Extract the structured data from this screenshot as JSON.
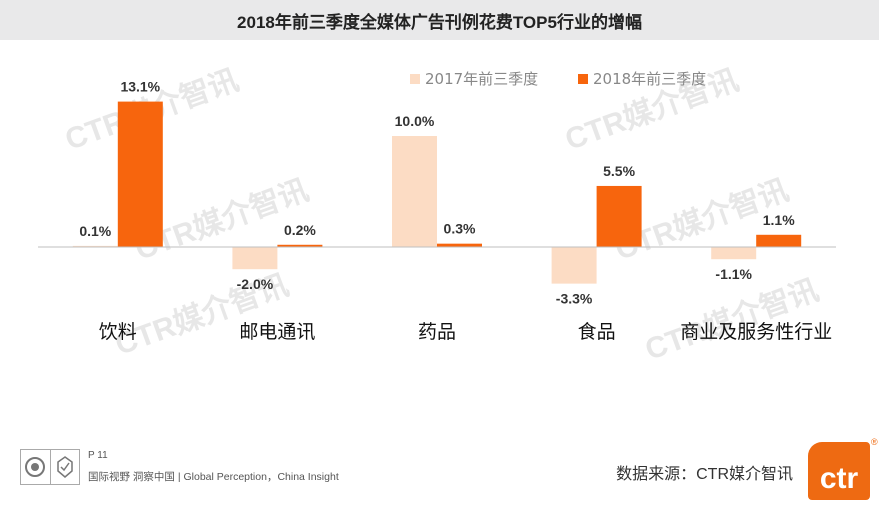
{
  "header": {
    "title": "2018年前三季度全媒体广告刊例花费TOP5行业的增幅"
  },
  "watermark": {
    "text": "CTR媒介智讯"
  },
  "chart_data": {
    "type": "bar",
    "title": "2018年前三季度全媒体广告刊例花费TOP5行业的增幅",
    "categories": [
      "饮料",
      "邮电通讯",
      "药品",
      "食品",
      "商业及服务性行业"
    ],
    "series": [
      {
        "name": "2017年前三季度",
        "color": "#fcdcc4",
        "values": [
          0.1,
          -2.0,
          10.0,
          -3.3,
          -1.1
        ],
        "labels": [
          "0.1%",
          "-2.0%",
          "10.0%",
          "-3.3%",
          "-1.1%"
        ]
      },
      {
        "name": "2018年前三季度",
        "color": "#f7650d",
        "values": [
          13.1,
          0.2,
          0.3,
          5.5,
          1.1
        ],
        "labels": [
          "13.1%",
          "0.2%",
          "0.3%",
          "5.5%",
          "1.1%"
        ]
      }
    ],
    "ylim": [
      -6,
      14
    ],
    "grid": false,
    "legend": "top-right",
    "xlabel": "",
    "ylabel": ""
  },
  "footer": {
    "page": "P 11",
    "tagline": "国际视野  洞察中国 | Global Perception，China Insight",
    "source": "数据来源：CTR媒介智讯",
    "logo_text": "ctr",
    "registered": "®"
  }
}
